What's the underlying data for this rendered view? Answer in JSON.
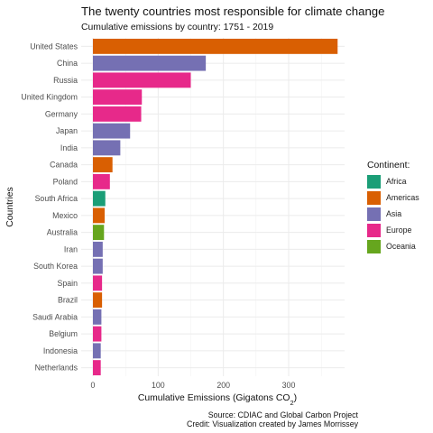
{
  "chart_data": {
    "type": "bar",
    "orientation": "horizontal",
    "title": "The twenty countries most responsible for climate change",
    "subtitle": "Cumulative emissions by country: 1751 - 2019",
    "xlabel": "Cumulative Emissions (Gigatons CO",
    "xlabel_sub": "2",
    "xlabel_end": ")",
    "ylabel": "Countries",
    "xlim": [
      0,
      380
    ],
    "xticks": [
      0,
      100,
      200,
      300
    ],
    "grid": true,
    "legend_title": "Continent:",
    "legend_position": "right",
    "legend": [
      {
        "name": "Africa",
        "color": "#1b9e77"
      },
      {
        "name": "Americas",
        "color": "#d95f02"
      },
      {
        "name": "Asia",
        "color": "#7570b3"
      },
      {
        "name": "Europe",
        "color": "#e7298a"
      },
      {
        "name": "Oceania",
        "color": "#66a61e"
      }
    ],
    "bars": [
      {
        "country": "United States",
        "value": 375,
        "continent": "Americas"
      },
      {
        "country": "China",
        "value": 173,
        "continent": "Asia"
      },
      {
        "country": "Russia",
        "value": 150,
        "continent": "Europe"
      },
      {
        "country": "United Kingdom",
        "value": 75,
        "continent": "Europe"
      },
      {
        "country": "Germany",
        "value": 74,
        "continent": "Europe"
      },
      {
        "country": "Japan",
        "value": 57,
        "continent": "Asia"
      },
      {
        "country": "India",
        "value": 42,
        "continent": "Asia"
      },
      {
        "country": "Canada",
        "value": 30,
        "continent": "Americas"
      },
      {
        "country": "Poland",
        "value": 26,
        "continent": "Europe"
      },
      {
        "country": "South Africa",
        "value": 19,
        "continent": "Africa"
      },
      {
        "country": "Mexico",
        "value": 18,
        "continent": "Americas"
      },
      {
        "country": "Australia",
        "value": 17,
        "continent": "Oceania"
      },
      {
        "country": "Iran",
        "value": 15,
        "continent": "Asia"
      },
      {
        "country": "South Korea",
        "value": 15,
        "continent": "Asia"
      },
      {
        "country": "Spain",
        "value": 14,
        "continent": "Europe"
      },
      {
        "country": "Brazil",
        "value": 14,
        "continent": "Americas"
      },
      {
        "country": "Saudi Arabia",
        "value": 13,
        "continent": "Asia"
      },
      {
        "country": "Belgium",
        "value": 13,
        "continent": "Europe"
      },
      {
        "country": "Indonesia",
        "value": 12,
        "continent": "Asia"
      },
      {
        "country": "Netherlands",
        "value": 12,
        "continent": "Europe"
      }
    ]
  },
  "caption": {
    "line1": "Source: CDIAC and Global Carbon Project",
    "line2": "Credit: Visualization created by James Morrissey"
  }
}
